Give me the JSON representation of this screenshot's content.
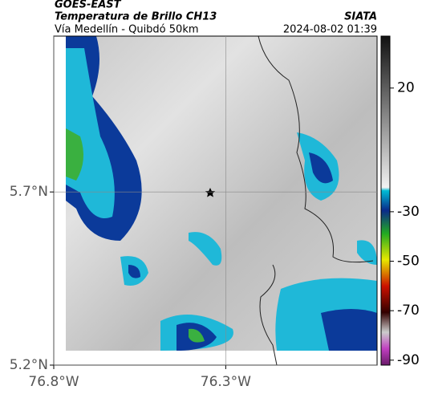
{
  "header": {
    "title": "GOES-EAST",
    "subtitle": "Temperatura de Brillo CH13",
    "source": "SIATA",
    "route": "Vía Medellín - Quibdó 50km",
    "timestamp": "2024-08-02 01:39"
  },
  "map": {
    "xlim": [
      -76.8,
      -75.86
    ],
    "ylim": [
      5.2,
      6.15
    ],
    "xticks": [
      {
        "value": -76.8,
        "label": "76.8°W"
      },
      {
        "value": -76.3,
        "label": "76.3°W"
      }
    ],
    "yticks": [
      {
        "value": 5.7,
        "label": "5.7°N"
      },
      {
        "value": 5.2,
        "label": "5.2°N"
      }
    ]
  },
  "colorbar": {
    "lim": [
      41,
      -92
    ],
    "ticks": [
      20,
      -30,
      -50,
      -70,
      -90
    ]
  }
}
